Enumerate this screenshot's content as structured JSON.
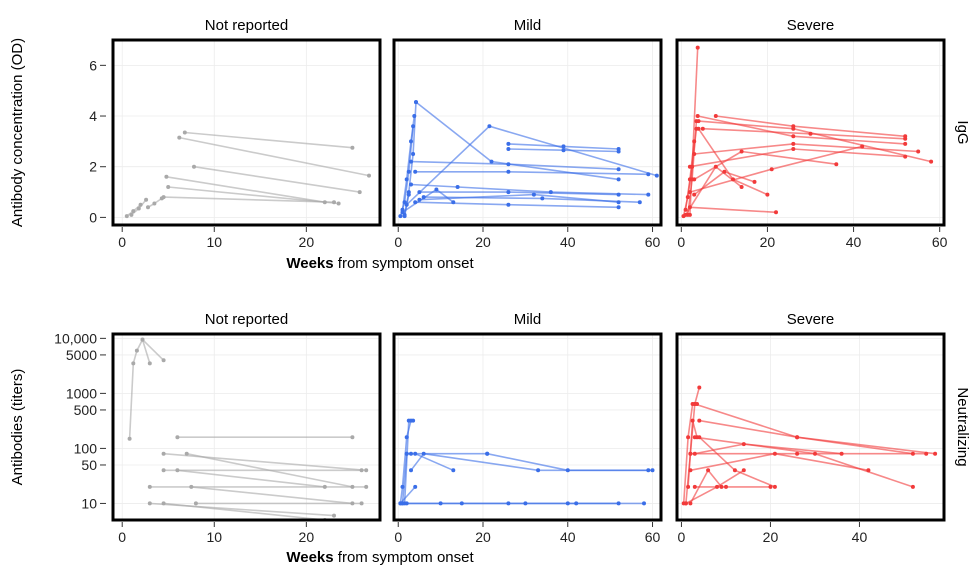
{
  "chart_data": [
    {
      "type": "line",
      "row_label": "IgG",
      "ylabel": "Antibody concentration (OD)",
      "xlabel_bold": "Weeks",
      "xlabel_rest": " from symptom onset",
      "y_scale": "linear",
      "ylim": [
        -0.3,
        7
      ],
      "yticks": [
        0,
        2,
        4,
        6
      ],
      "ytick_labels": [
        "0",
        "2",
        "4",
        "6"
      ],
      "grid": true,
      "panels": [
        {
          "title": "Not reported",
          "color": "#a9a9a9",
          "xlim": [
            -1,
            28
          ],
          "xticks": [
            0,
            10,
            20
          ],
          "series": [
            {
              "x": [
                0.5,
                1.2,
                2.0
              ],
              "y": [
                0.05,
                0.25,
                0.5
              ]
            },
            {
              "x": [
                1.0,
                1.8,
                2.6
              ],
              "y": [
                0.1,
                0.35,
                0.7
              ]
            },
            {
              "x": [
                2.8,
                3.5,
                4.3
              ],
              "y": [
                0.4,
                0.55,
                0.75
              ]
            },
            {
              "x": [
                6.8,
                25.0
              ],
              "y": [
                3.35,
                2.75
              ]
            },
            {
              "x": [
                6.2,
                26.8
              ],
              "y": [
                3.15,
                1.65
              ]
            },
            {
              "x": [
                7.8,
                25.8
              ],
              "y": [
                2.0,
                1.0
              ]
            },
            {
              "x": [
                4.8,
                22.0
              ],
              "y": [
                1.6,
                0.6
              ]
            },
            {
              "x": [
                5.0,
                23.5
              ],
              "y": [
                1.2,
                0.55
              ]
            },
            {
              "x": [
                4.5,
                23.0
              ],
              "y": [
                0.8,
                0.6
              ]
            }
          ]
        },
        {
          "title": "Mild",
          "color": "#3a6ee8",
          "xlim": [
            -1,
            62
          ],
          "xticks": [
            0,
            20,
            40,
            60
          ],
          "series": [
            {
              "x": [
                1.0,
                2.0,
                3.0,
                3.8
              ],
              "y": [
                0.3,
                1.5,
                3.0,
                4.0
              ]
            },
            {
              "x": [
                1.5,
                2.5,
                3.5,
                4.2
              ],
              "y": [
                0.1,
                1.0,
                2.5,
                4.55
              ]
            },
            {
              "x": [
                0.5,
                1.5,
                2.5,
                3.5
              ],
              "y": [
                0.05,
                0.6,
                1.8,
                3.6
              ]
            },
            {
              "x": [
                4.2,
                22.0,
                52.0
              ],
              "y": [
                4.55,
                2.2,
                1.5
              ]
            },
            {
              "x": [
                2.0,
                21.5,
                61.0
              ],
              "y": [
                0.5,
                3.6,
                1.65
              ]
            },
            {
              "x": [
                26.0,
                39.0,
                52.0
              ],
              "y": [
                2.9,
                2.8,
                2.7
              ]
            },
            {
              "x": [
                26.0,
                39.0,
                52.0
              ],
              "y": [
                2.7,
                2.65,
                2.6
              ]
            },
            {
              "x": [
                3.0,
                26.0,
                52.0
              ],
              "y": [
                2.2,
                2.1,
                1.9
              ]
            },
            {
              "x": [
                4.0,
                26.0,
                59.0
              ],
              "y": [
                1.8,
                1.8,
                1.7
              ]
            },
            {
              "x": [
                5.0,
                26.0,
                52.0
              ],
              "y": [
                1.0,
                1.0,
                0.9
              ]
            },
            {
              "x": [
                6.0,
                34.0,
                57.0
              ],
              "y": [
                0.8,
                0.75,
                0.6
              ]
            },
            {
              "x": [
                5.0,
                32.0,
                52.0
              ],
              "y": [
                0.7,
                0.9,
                0.6
              ]
            },
            {
              "x": [
                3.0,
                14.0,
                36.0,
                59.0
              ],
              "y": [
                1.3,
                1.2,
                1.0,
                0.9
              ]
            },
            {
              "x": [
                4.0,
                26.0,
                52.0
              ],
              "y": [
                0.6,
                0.5,
                0.4
              ]
            },
            {
              "x": [
                1.0,
                9.0,
                13.0
              ],
              "y": [
                0.2,
                1.1,
                0.6
              ]
            },
            {
              "x": [
                1.5,
                2.5
              ],
              "y": [
                0.05,
                0.9
              ]
            }
          ]
        },
        {
          "title": "Severe",
          "color": "#f23a3a",
          "xlim": [
            -1,
            61
          ],
          "xticks": [
            0,
            20,
            40,
            60
          ],
          "series": [
            {
              "x": [
                1.0,
                2.0,
                3.0
              ],
              "y": [
                0.3,
                1.5,
                3.0
              ]
            },
            {
              "x": [
                1.5,
                2.5,
                3.5
              ],
              "y": [
                0.1,
                1.5,
                3.8
              ]
            },
            {
              "x": [
                0.5,
                1.5,
                2.5,
                3.5
              ],
              "y": [
                0.05,
                0.8,
                2.0,
                3.5
              ]
            },
            {
              "x": [
                2.0,
                3.8
              ],
              "y": [
                0.1,
                6.7
              ]
            },
            {
              "x": [
                3.8,
                26.0,
                52.0
              ],
              "y": [
                4.0,
                3.2,
                2.9
              ]
            },
            {
              "x": [
                4.0,
                26.0,
                58.0
              ],
              "y": [
                3.8,
                3.5,
                2.2
              ]
            },
            {
              "x": [
                8.0,
                26.0,
                52.0
              ],
              "y": [
                4.0,
                3.6,
                3.2
              ]
            },
            {
              "x": [
                5.0,
                30.0,
                52.0
              ],
              "y": [
                3.5,
                3.3,
                3.1
              ]
            },
            {
              "x": [
                3.0,
                26.0,
                55.0
              ],
              "y": [
                2.5,
                2.9,
                2.6
              ]
            },
            {
              "x": [
                2.0,
                26.0,
                52.0
              ],
              "y": [
                2.0,
                2.7,
                2.4
              ]
            },
            {
              "x": [
                3.0,
                14.0,
                36.0
              ],
              "y": [
                1.5,
                2.6,
                2.1
              ]
            },
            {
              "x": [
                2.0,
                21.0,
                42.0
              ],
              "y": [
                1.0,
                1.9,
                2.8
              ]
            },
            {
              "x": [
                3.0,
                10.0,
                17.0
              ],
              "y": [
                0.9,
                1.8,
                1.4
              ]
            },
            {
              "x": [
                2.0,
                22.0
              ],
              "y": [
                0.4,
                0.2
              ]
            },
            {
              "x": [
                4.0,
                12.0,
                20.0
              ],
              "y": [
                3.5,
                1.5,
                0.9
              ]
            },
            {
              "x": [
                1.0,
                8.0,
                14.0
              ],
              "y": [
                0.1,
                2.0,
                1.2
              ]
            }
          ]
        }
      ]
    },
    {
      "type": "line",
      "row_label": "Neutralizing",
      "ylabel": "Antibodies (titers)",
      "xlabel_bold": "Weeks",
      "xlabel_rest": " from symptom onset",
      "y_scale": "log",
      "ylim": [
        5,
        12000
      ],
      "yticks": [
        10,
        50,
        100,
        500,
        1000,
        5000,
        10000
      ],
      "ytick_labels": [
        "10",
        "50",
        "100",
        "500",
        "1000",
        "5000",
        "10,000"
      ],
      "grid": true,
      "panels": [
        {
          "title": "Not reported",
          "color": "#a9a9a9",
          "xlim": [
            -1,
            28
          ],
          "xticks": [
            0,
            10,
            20
          ],
          "series": [
            {
              "x": [
                0.8,
                1.2,
                1.6,
                2.2,
                3.0
              ],
              "y": [
                150,
                3500,
                6000,
                9500,
                3500
              ]
            },
            {
              "x": [
                2.2,
                4.5
              ],
              "y": [
                9500,
                4000
              ]
            },
            {
              "x": [
                6.0,
                25.0
              ],
              "y": [
                160,
                160
              ]
            },
            {
              "x": [
                4.5,
                26.5
              ],
              "y": [
                80,
                40
              ]
            },
            {
              "x": [
                7.0,
                25.0
              ],
              "y": [
                80,
                20
              ]
            },
            {
              "x": [
                4.5,
                26.0
              ],
              "y": [
                40,
                40
              ]
            },
            {
              "x": [
                6.0,
                22.0
              ],
              "y": [
                40,
                20
              ]
            },
            {
              "x": [
                3.0,
                26.5
              ],
              "y": [
                20,
                20
              ]
            },
            {
              "x": [
                7.5,
                25.0
              ],
              "y": [
                20,
                10
              ]
            },
            {
              "x": [
                3.0,
                23.0
              ],
              "y": [
                10,
                6
              ]
            },
            {
              "x": [
                4.5,
                22.0
              ],
              "y": [
                10,
                5
              ]
            },
            {
              "x": [
                8.0,
                26.0
              ],
              "y": [
                10,
                10
              ]
            }
          ]
        },
        {
          "title": "Mild",
          "color": "#3a6ee8",
          "xlim": [
            -1,
            62
          ],
          "xticks": [
            0,
            20,
            40,
            60
          ],
          "series": [
            {
              "x": [
                0.5,
                1.0,
                2.0,
                3.0
              ],
              "y": [
                10,
                20,
                160,
                320
              ]
            },
            {
              "x": [
                1.5,
                2.5,
                3.5
              ],
              "y": [
                10,
                320,
                320
              ]
            },
            {
              "x": [
                1.0,
                2.0,
                3.0
              ],
              "y": [
                10,
                80,
                80
              ]
            },
            {
              "x": [
                2.0,
                21.0
              ],
              "y": [
                80,
                80
              ]
            },
            {
              "x": [
                3.0,
                6.0,
                33.0,
                60.0
              ],
              "y": [
                40,
                80,
                40,
                40
              ]
            },
            {
              "x": [
                4.0,
                13.0
              ],
              "y": [
                80,
                40
              ]
            },
            {
              "x": [
                21.0,
                40.0,
                59.0
              ],
              "y": [
                80,
                40,
                40
              ]
            },
            {
              "x": [
                1.0,
                10.0,
                26.0,
                40.0,
                52.0
              ],
              "y": [
                10,
                10,
                10,
                10,
                10
              ]
            },
            {
              "x": [
                2.0,
                15.0,
                30.0,
                42.0,
                58.0
              ],
              "y": [
                10,
                10,
                10,
                10,
                10
              ]
            },
            {
              "x": [
                0.5,
                4.0
              ],
              "y": [
                10,
                20
              ]
            }
          ]
        },
        {
          "title": "Severe",
          "color": "#f23a3a",
          "xlim": [
            -1,
            59
          ],
          "xticks": [
            0,
            20,
            40
          ],
          "series": [
            {
              "x": [
                1.0,
                2.0,
                3.0,
                4.0
              ],
              "y": [
                10,
                80,
                640,
                1280
              ]
            },
            {
              "x": [
                0.5,
                1.5,
                2.5,
                3.5
              ],
              "y": [
                10,
                160,
                640,
                640
              ]
            },
            {
              "x": [
                1.5,
                2.5,
                3.5
              ],
              "y": [
                20,
                320,
                160
              ]
            },
            {
              "x": [
                3.0,
                26.0,
                52.0
              ],
              "y": [
                640,
                160,
                80
              ]
            },
            {
              "x": [
                4.0,
                26.0,
                57.0
              ],
              "y": [
                320,
                160,
                80
              ]
            },
            {
              "x": [
                3.0,
                30.0,
                52.0
              ],
              "y": [
                160,
                80,
                20
              ]
            },
            {
              "x": [
                2.0,
                26.0,
                55.0
              ],
              "y": [
                80,
                80,
                80
              ]
            },
            {
              "x": [
                3.0,
                14.0,
                36.0
              ],
              "y": [
                80,
                120,
                80
              ]
            },
            {
              "x": [
                2.0,
                21.0,
                42.0
              ],
              "y": [
                40,
                80,
                40
              ]
            },
            {
              "x": [
                3.0,
                10.0,
                20.0
              ],
              "y": [
                20,
                20,
                20
              ]
            },
            {
              "x": [
                2.0,
                6.0,
                9.0
              ],
              "y": [
                10,
                40,
                20
              ]
            },
            {
              "x": [
                1.0,
                8.0,
                14.0
              ],
              "y": [
                10,
                20,
                40
              ]
            },
            {
              "x": [
                4.0,
                12.0,
                21.0
              ],
              "y": [
                160,
                40,
                20
              ]
            }
          ]
        }
      ]
    }
  ]
}
